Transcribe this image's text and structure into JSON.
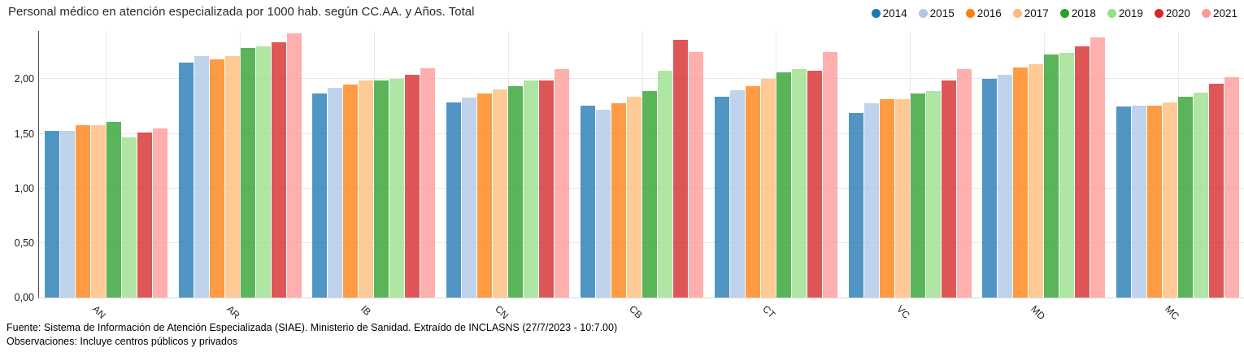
{
  "title": "Personal médico en atención especializada por 1000 hab. según CC.AA. y Años. Total",
  "footer": {
    "source": "Fuente: Sistema de Información de Atención Especializada (SIAE). Ministerio de Sanidad. Extraído de INCLASNS (27/7/2023 - 10:7.00)",
    "observations": "Observaciones: Incluye centros públicos y privados"
  },
  "chart_data": {
    "type": "bar",
    "title": "Personal médico en atención especializada por 1000 hab. según CC.AA. y Años. Total",
    "xlabel": "",
    "ylabel": "",
    "grid": true,
    "legend_position": "top-right",
    "ylim": [
      0,
      2.45
    ],
    "y_ticks": [
      {
        "value": 0.0,
        "label": "0,00"
      },
      {
        "value": 0.5,
        "label": "0,50"
      },
      {
        "value": 1.0,
        "label": "1,00"
      },
      {
        "value": 1.5,
        "label": "1,50"
      },
      {
        "value": 2.0,
        "label": "2,00"
      }
    ],
    "categories": [
      "AN",
      "AR",
      "IB",
      "CN",
      "CB",
      "CT",
      "VC",
      "MD",
      "MC"
    ],
    "series": [
      {
        "name": "2014",
        "color": "#1f77b4",
        "values": [
          1.53,
          2.15,
          1.87,
          1.79,
          1.76,
          1.84,
          1.69,
          2.0,
          1.75
        ]
      },
      {
        "name": "2015",
        "color": "#aec7e8",
        "values": [
          1.53,
          2.21,
          1.92,
          1.83,
          1.72,
          1.9,
          1.78,
          2.04,
          1.76
        ]
      },
      {
        "name": "2016",
        "color": "#ff7f0e",
        "values": [
          1.58,
          2.18,
          1.95,
          1.87,
          1.78,
          1.94,
          1.82,
          2.11,
          1.76
        ]
      },
      {
        "name": "2017",
        "color": "#ffbb78",
        "values": [
          1.58,
          2.21,
          1.99,
          1.91,
          1.84,
          2.0,
          1.82,
          2.14,
          1.79
        ]
      },
      {
        "name": "2018",
        "color": "#2ca02c",
        "values": [
          1.61,
          2.29,
          1.99,
          1.94,
          1.89,
          2.06,
          1.87,
          2.23,
          1.84
        ]
      },
      {
        "name": "2019",
        "color": "#98df8a",
        "values": [
          1.47,
          2.3,
          2.0,
          1.99,
          2.08,
          2.09,
          1.89,
          2.24,
          1.88
        ]
      },
      {
        "name": "2020",
        "color": "#d62728",
        "values": [
          1.51,
          2.34,
          2.04,
          1.99,
          2.36,
          2.08,
          1.99,
          2.3,
          1.96
        ]
      },
      {
        "name": "2021",
        "color": "#ff9896",
        "values": [
          1.55,
          2.42,
          2.1,
          2.09,
          2.25,
          2.25,
          2.09,
          2.38,
          2.02
        ]
      }
    ]
  }
}
